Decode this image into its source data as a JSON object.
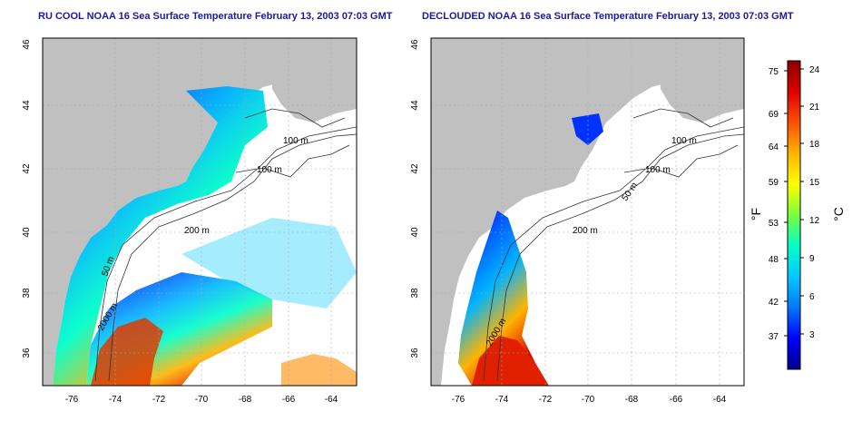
{
  "panels": [
    {
      "title": "RU COOL NOAA 16 Sea Surface Temperature February 13, 2003 07:03 GMT",
      "x_ticks": [
        "-76",
        "-74",
        "-72",
        "-70",
        "-68",
        "-66",
        "-64"
      ],
      "y_ticks": [
        "36",
        "38",
        "40",
        "42",
        "44",
        "46"
      ],
      "contour_labels": [
        "100 m",
        "100 m",
        "200 m",
        "50 m",
        "2000 m"
      ]
    },
    {
      "title": "DECLOUDED NOAA 16 Sea Surface Temperature February 13, 2003 07:03 GMT",
      "x_ticks": [
        "-76",
        "-74",
        "-72",
        "-70",
        "-68",
        "-66",
        "-64"
      ],
      "y_ticks": [
        "36",
        "38",
        "40",
        "42",
        "44",
        "46"
      ],
      "contour_labels": [
        "100 m",
        "100 m",
        "200 m",
        "50 m",
        "2000 m"
      ]
    }
  ],
  "colorbar": {
    "f_label": "°F",
    "c_label": "°C",
    "f_ticks": [
      "75",
      "69",
      "64",
      "59",
      "53",
      "48",
      "42",
      "37"
    ],
    "c_ticks": [
      "24",
      "21",
      "18",
      "15",
      "12",
      "9",
      "6",
      "3"
    ],
    "colors": [
      "#00008b",
      "#0000ff",
      "#0078ff",
      "#00c8ff",
      "#00ffc8",
      "#78ff3c",
      "#ffff00",
      "#ffb400",
      "#ff5000",
      "#dc0000",
      "#8b0000"
    ]
  },
  "map_colors": {
    "land": "#c0c0c0",
    "ocean_cloud": "#ffffff"
  }
}
